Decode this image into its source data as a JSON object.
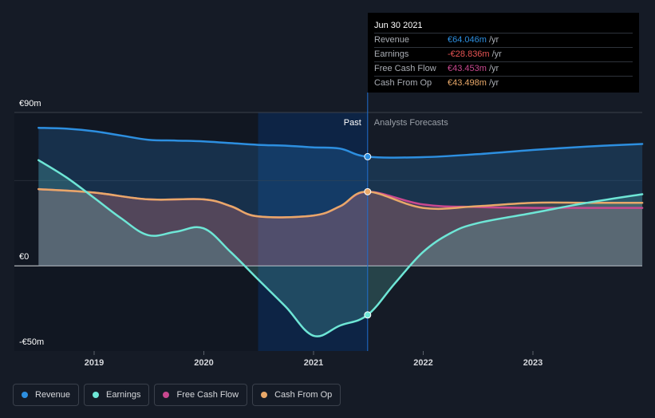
{
  "colors": {
    "background": "#151b26",
    "revenue": "#2d8fe0",
    "earnings": "#6ee6d6",
    "fcf": "#c8488f",
    "cfo": "#e8a869",
    "past_highlight": "#0c2a52"
  },
  "chart_data": {
    "type": "line",
    "ylim": [
      -50,
      90
    ],
    "y_tick_labels": [
      "€90m",
      "€0",
      "-€50m"
    ],
    "x_tick_labels": [
      "2019",
      "2020",
      "2021",
      "2022",
      "2023"
    ],
    "past_label": "Past",
    "forecast_label": "Analysts Forecasts",
    "past_end": "2021-06-30",
    "series": [
      {
        "name": "Revenue",
        "color": "#2d8fe0",
        "x": [
          "2018-06-30",
          "2018-09-30",
          "2018-12-31",
          "2019-03-31",
          "2019-06-30",
          "2019-09-30",
          "2019-12-31",
          "2020-03-31",
          "2020-06-30",
          "2020-09-30",
          "2020-12-31",
          "2021-03-31",
          "2021-06-30",
          "2021-12-31",
          "2022-06-30",
          "2022-12-31",
          "2023-06-30",
          "2023-12-31"
        ],
        "y": [
          81,
          80.5,
          79,
          76.5,
          74,
          73.5,
          73,
          72,
          71,
          70.5,
          69.5,
          68.8,
          64.046,
          63.8,
          65.5,
          68,
          70,
          71.5
        ]
      },
      {
        "name": "Earnings",
        "color": "#6ee6d6",
        "x": [
          "2018-06-30",
          "2018-09-30",
          "2018-12-31",
          "2019-03-31",
          "2019-06-30",
          "2019-09-30",
          "2019-12-31",
          "2020-03-31",
          "2020-06-30",
          "2020-09-30",
          "2020-12-31",
          "2021-03-31",
          "2021-06-30",
          "2021-09-30",
          "2021-12-31",
          "2022-03-31",
          "2022-06-30",
          "2022-12-31",
          "2023-06-30",
          "2023-12-31"
        ],
        "y": [
          62,
          52,
          40,
          28,
          18,
          20,
          22,
          8,
          -8,
          -24,
          -41,
          -35,
          -28.836,
          -10,
          8,
          19,
          25,
          31,
          37,
          42
        ]
      },
      {
        "name": "Free Cash Flow",
        "color": "#c8488f",
        "x": [
          "2018-06-30",
          "2018-12-31",
          "2019-06-30",
          "2019-12-31",
          "2020-03-31",
          "2020-06-30",
          "2020-12-31",
          "2021-03-31",
          "2021-06-30",
          "2021-12-31",
          "2022-06-30",
          "2022-12-31",
          "2023-06-30",
          "2023-12-31"
        ],
        "y": [
          45,
          43,
          39,
          39,
          35,
          29,
          29.5,
          35,
          43.453,
          36,
          34.5,
          34,
          34,
          34
        ]
      },
      {
        "name": "Cash From Op",
        "color": "#e8a869",
        "x": [
          "2018-06-30",
          "2018-12-31",
          "2019-06-30",
          "2019-12-31",
          "2020-03-31",
          "2020-06-30",
          "2020-12-31",
          "2021-03-31",
          "2021-06-30",
          "2021-12-31",
          "2022-06-30",
          "2022-12-31",
          "2023-06-30",
          "2023-12-31"
        ],
        "y": [
          45,
          43,
          39,
          39,
          35,
          29,
          29.5,
          35,
          43.498,
          34,
          35,
          37,
          37,
          37
        ]
      }
    ]
  },
  "tooltip": {
    "date": "Jun 30 2021",
    "rows": [
      {
        "label": "Revenue",
        "value": "€64.046m",
        "unit": "/yr",
        "color": "#2d8fe0"
      },
      {
        "label": "Earnings",
        "value": "-€28.836m",
        "unit": "/yr",
        "color": "#e85454"
      },
      {
        "label": "Free Cash Flow",
        "value": "€43.453m",
        "unit": "/yr",
        "color": "#c8488f"
      },
      {
        "label": "Cash From Op",
        "value": "€43.498m",
        "unit": "/yr",
        "color": "#e8a869"
      }
    ]
  },
  "legend": [
    {
      "label": "Revenue",
      "color": "#2d8fe0"
    },
    {
      "label": "Earnings",
      "color": "#6ee6d6"
    },
    {
      "label": "Free Cash Flow",
      "color": "#c8488f"
    },
    {
      "label": "Cash From Op",
      "color": "#e8a869"
    }
  ]
}
